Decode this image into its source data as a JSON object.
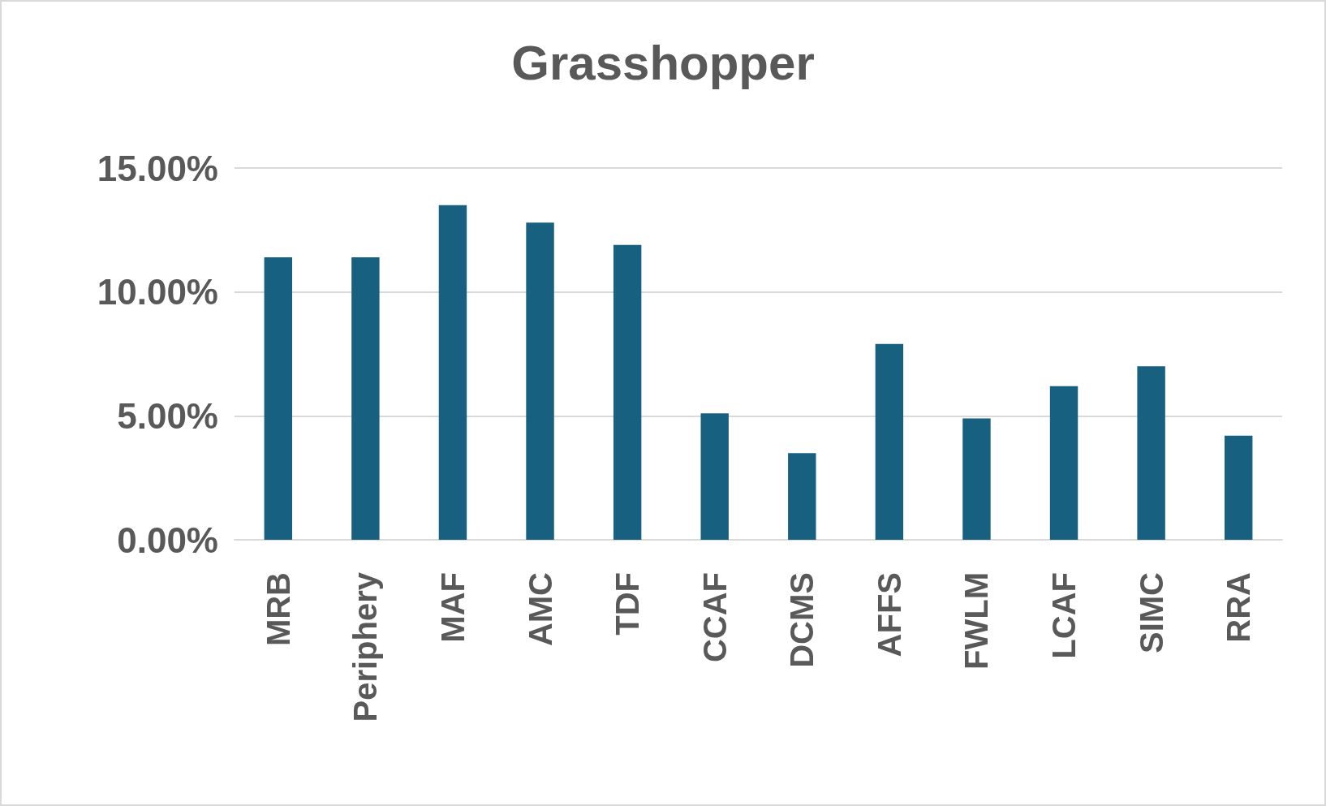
{
  "chart_data": {
    "type": "bar",
    "title": "Grasshopper",
    "categories": [
      "MRB",
      "Periphery",
      "MAF",
      "AMC",
      "TDF",
      "CCAF",
      "DCMS",
      "AFFS",
      "FWLM",
      "LCAF",
      "SIMC",
      "RRA"
    ],
    "values": [
      11.4,
      11.4,
      13.5,
      12.8,
      11.9,
      5.1,
      3.5,
      7.9,
      4.9,
      6.2,
      7.0,
      4.2
    ],
    "color": "#18607f",
    "ylim": [
      0,
      15
    ],
    "yticks": [
      {
        "value": 0,
        "label": "0.00%"
      },
      {
        "value": 5,
        "label": "5.00%"
      },
      {
        "value": 10,
        "label": "10.00%"
      },
      {
        "value": 15,
        "label": "15.00%"
      }
    ],
    "grid": "y"
  }
}
